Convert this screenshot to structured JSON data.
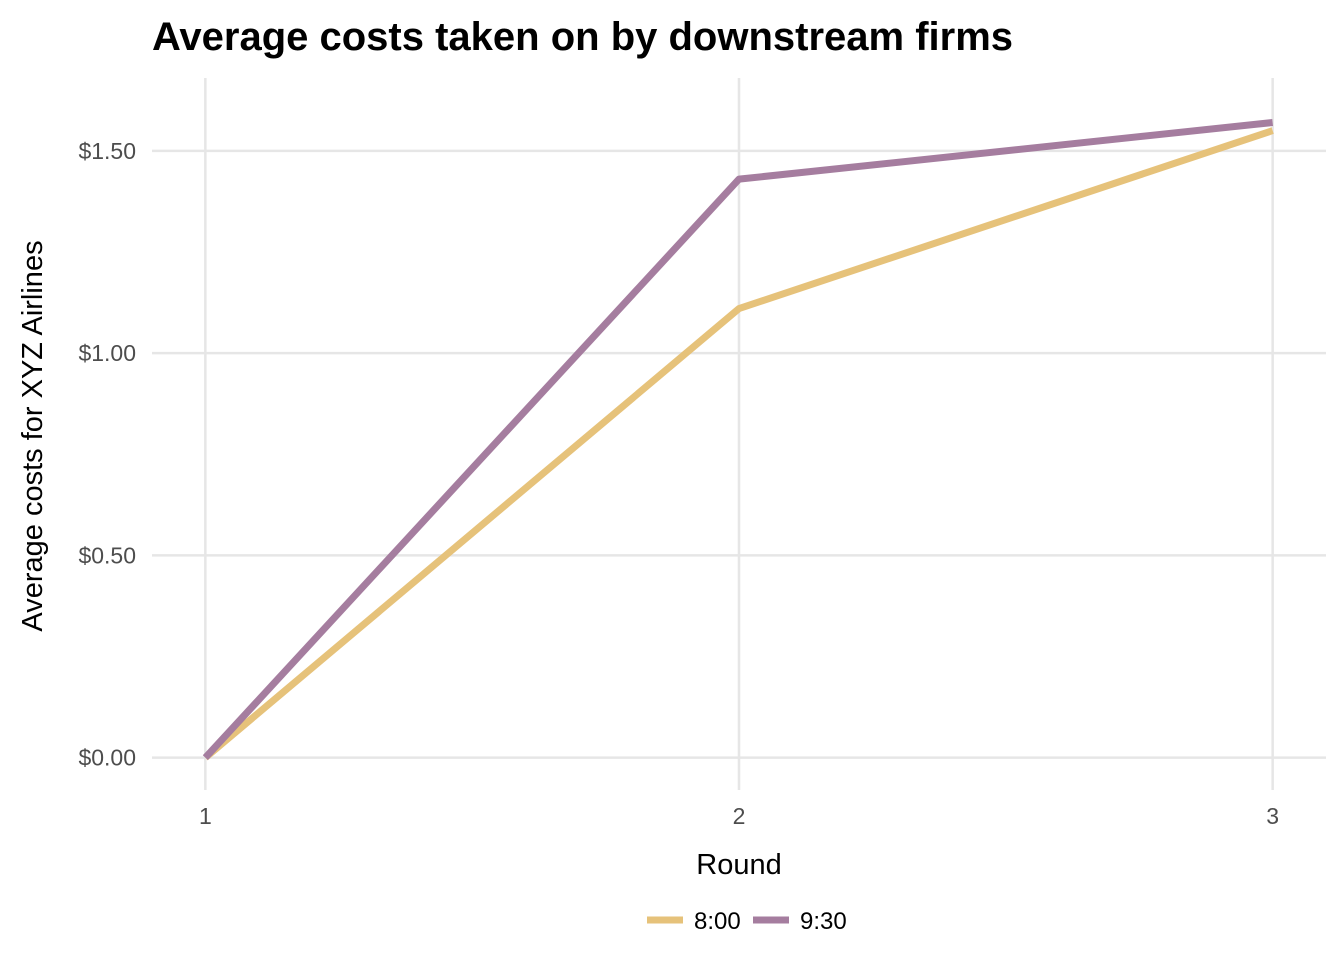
{
  "chart_data": {
    "type": "line",
    "title": "Average costs taken on by downstream firms",
    "xlabel": "Round",
    "ylabel": "Average costs for XYZ Airlines",
    "x": [
      1,
      2,
      3
    ],
    "x_tick_labels": [
      "1",
      "2",
      "3"
    ],
    "y_ticks": [
      0,
      0.5,
      1.0,
      1.5
    ],
    "y_tick_labels": [
      "$0.00",
      "$0.50",
      "$1.00",
      "$1.50"
    ],
    "xlim": [
      0.9,
      3.1
    ],
    "ylim": [
      -0.08,
      1.68
    ],
    "grid": true,
    "legend_position": "bottom",
    "series": [
      {
        "name": "8:00",
        "color": "#E6C27A",
        "values": [
          0.0,
          1.11,
          1.55
        ]
      },
      {
        "name": "9:30",
        "color": "#A57D9F",
        "values": [
          0.0,
          1.43,
          1.57
        ]
      }
    ]
  }
}
